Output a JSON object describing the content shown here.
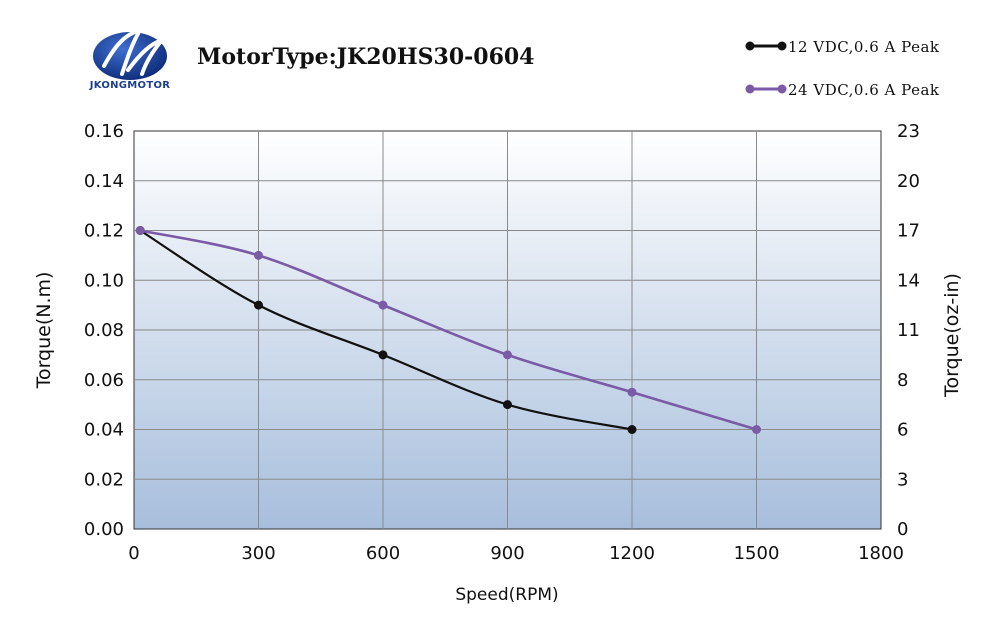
{
  "brand": {
    "name": "JKONGMOTOR"
  },
  "chart_data": {
    "type": "line",
    "title": "MotorType:JK20HS30-0604",
    "xlabel": "Speed(RPM)",
    "ylabel": "Torque(N.m)",
    "y2label": "Torque(oz-in)",
    "xlim": [
      0,
      1800
    ],
    "ylim": [
      0,
      0.16
    ],
    "y2lim": [
      0,
      23
    ],
    "x_ticks": [
      0,
      300,
      600,
      900,
      1200,
      1500,
      1800
    ],
    "y_ticks": [
      "0.00",
      "0.02",
      "0.04",
      "0.06",
      "0.08",
      "0.10",
      "0.12",
      "0.14",
      "0.16"
    ],
    "y2_ticks": [
      "0",
      "3",
      "6",
      "8",
      "11",
      "14",
      "17",
      "20",
      "23"
    ],
    "grid": true,
    "legend_position": "top-right",
    "series": [
      {
        "name": "12 VDC,0.6 A Peak",
        "color": "#111111",
        "x": [
          15,
          300,
          600,
          900,
          1200
        ],
        "values": [
          0.12,
          0.09,
          0.07,
          0.05,
          0.04
        ]
      },
      {
        "name": "24 VDC,0.6 A Peak",
        "color": "#7b5aa6",
        "x": [
          15,
          300,
          600,
          900,
          1200,
          1500
        ],
        "values": [
          0.12,
          0.11,
          0.09,
          0.07,
          0.055,
          0.04
        ]
      }
    ]
  },
  "colors": {
    "plot_top": "#ffffff",
    "plot_bottom": "#a7bedc",
    "grid": "#8a8a8a",
    "logo_blue": "#1d3f8f"
  }
}
